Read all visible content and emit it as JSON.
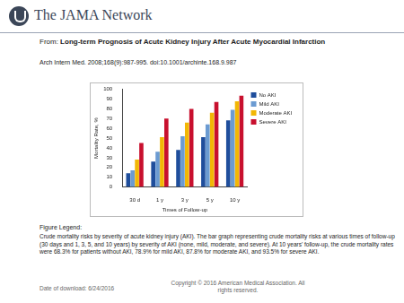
{
  "header": "The JAMA Network",
  "from_label": "From:",
  "article_title": "Long-term Prognosis of Acute Kidney Injury After Acute Myocardial Infarction",
  "citation": "Arch Intern Med. 2008;168(9):987-995. doi:10.1001/archinte.168.9.987",
  "figure_legend_heading": "Figure Legend:",
  "figure_legend": "Crude mortality risks by severity of acute kidney injury (AKI). The bar graph representing crude mortality risks at various times of follow-up (30 days and 1, 3, 5, and 10 years) by severity of AKI (none, mild, moderate, and severe). At 10 years' follow-up, the crude mortality rates were 68.3% for patients without AKI, 78.9% for mild AKI, 87.8% for moderate AKI, and 93.5% for severe AKI.",
  "date_of_download": "Date of download: 6/24/2016",
  "copyright": "Copyright © 2016 American Medical Association. All rights reserved.",
  "chart_data": {
    "type": "bar",
    "x_label": "Times of Follow-up",
    "y_label": "Mortality Rate, %",
    "categories": [
      "30 d",
      "1 y",
      "3 y",
      "5 y",
      "10 y"
    ],
    "series": [
      {
        "name": "No AKI",
        "color": "#1f4e9c",
        "values": [
          14,
          26,
          38,
          51,
          68.3
        ]
      },
      {
        "name": "Mild AKI",
        "color": "#6b9bd2",
        "values": [
          17,
          36,
          52,
          64,
          78.9
        ]
      },
      {
        "name": "Moderate AKI",
        "color": "#f2b705",
        "values": [
          28,
          51,
          66,
          76,
          87.8
        ]
      },
      {
        "name": "Severe AKI",
        "color": "#c8102e",
        "values": [
          45,
          70,
          80,
          87,
          93.5
        ]
      }
    ],
    "ylim": [
      0,
      100
    ],
    "yticks": [
      0,
      10,
      20,
      30,
      40,
      50,
      60,
      70,
      80,
      90,
      100
    ],
    "grid": false,
    "legend": "right"
  }
}
